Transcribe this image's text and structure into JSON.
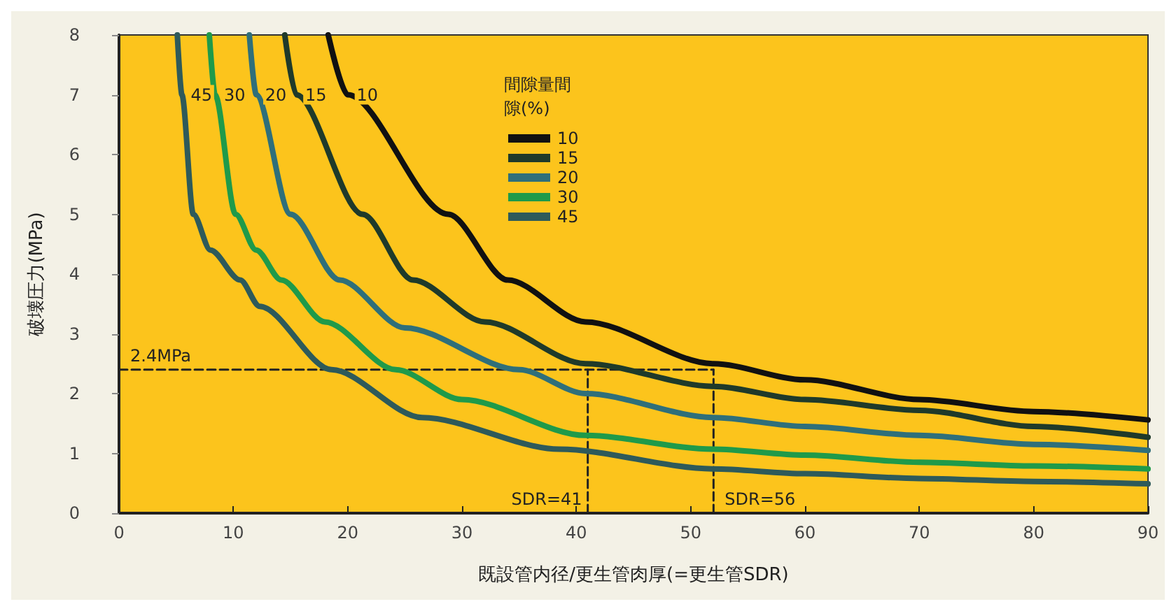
{
  "chart_data": {
    "type": "line",
    "xlabel": "既設管内径/更生管肉厚(=更生管SDR)",
    "ylabel": "破壊圧力(MPa)",
    "legend_title": "間隙量間隙(%)",
    "legend": "top",
    "grid": false,
    "marker": "none",
    "line_style": "solid",
    "xlim": [
      0,
      90
    ],
    "xticks": [
      0,
      10,
      20,
      30,
      40,
      50,
      60,
      70,
      80,
      90
    ],
    "ylim": [
      0,
      8
    ],
    "yticks": [
      0,
      1,
      2,
      3,
      4,
      5,
      6,
      7,
      8
    ],
    "series": [
      {
        "name": "10",
        "color": "#111111",
        "x": [
          18.3,
          20,
          28.8,
          34,
          40.8,
          52,
          60,
          70,
          80,
          90
        ],
        "values": [
          8,
          7,
          5,
          3.9,
          3.2,
          2.5,
          2.23,
          1.9,
          1.7,
          1.56
        ]
      },
      {
        "name": "15",
        "color": "#1f3a2a",
        "x": [
          14.5,
          15.5,
          21.3,
          25.7,
          32,
          40.8,
          52,
          60,
          70,
          80,
          90
        ],
        "values": [
          8,
          7,
          5,
          3.9,
          3.2,
          2.5,
          2.12,
          1.9,
          1.72,
          1.45,
          1.27
        ]
      },
      {
        "name": "20",
        "color": "#2f6f7a",
        "x": [
          11.4,
          12,
          15,
          19.3,
          25,
          35,
          40.8,
          52,
          60,
          70,
          80,
          90
        ],
        "values": [
          8,
          7,
          5,
          3.9,
          3.1,
          2.4,
          2.0,
          1.6,
          1.45,
          1.3,
          1.15,
          1.05
        ]
      },
      {
        "name": "30",
        "color": "#1f9a4a",
        "x": [
          7.9,
          8.4,
          10.2,
          12,
          14.2,
          18,
          24.2,
          30,
          40.8,
          52,
          60,
          70,
          80,
          90
        ],
        "values": [
          8,
          7,
          5,
          4.4,
          3.9,
          3.2,
          2.4,
          1.9,
          1.3,
          1.07,
          0.97,
          0.85,
          0.79,
          0.74
        ]
      },
      {
        "name": "45",
        "color": "#2e5a5a",
        "x": [
          5.1,
          5.5,
          6.5,
          8,
          10.6,
          12.3,
          18.6,
          26.5,
          38.5,
          52,
          60,
          70,
          80,
          90
        ],
        "values": [
          8,
          7,
          5,
          4.4,
          3.9,
          3.46,
          2.4,
          1.6,
          1.07,
          0.74,
          0.66,
          0.58,
          0.53,
          0.49
        ]
      },
      {
        "type": "line",
        "line_style": "dashed",
        "color": "#222222",
        "x": [
          0,
          52
        ],
        "values": [
          2.4,
          2.4
        ]
      },
      {
        "type": "line",
        "line_style": "dashed",
        "color": "#222222",
        "x": [
          41,
          41
        ],
        "values": [
          0,
          2.4
        ]
      },
      {
        "type": "line",
        "line_style": "dashed",
        "color": "#222222",
        "x": [
          52,
          52
        ],
        "values": [
          0,
          2.4
        ]
      }
    ],
    "annotations": [
      {
        "text": "2.4MPa",
        "x": 0,
        "y": 2.4
      },
      {
        "text": "SDR=41",
        "x": 41,
        "y": 0
      },
      {
        "text": "SDR=56",
        "x": 52,
        "y": 0
      }
    ]
  }
}
